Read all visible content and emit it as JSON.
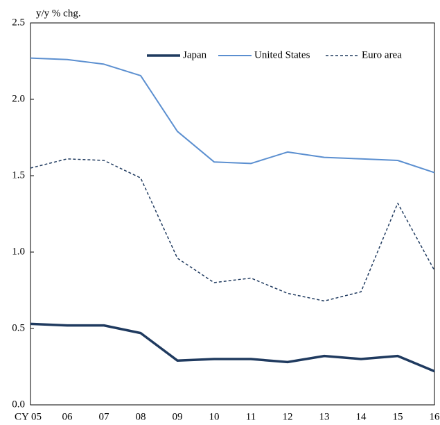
{
  "chart_data": {
    "type": "line",
    "y_label": "y/y % chg.",
    "categories": [
      "CY 05",
      "06",
      "07",
      "08",
      "09",
      "10",
      "11",
      "12",
      "13",
      "14",
      "15",
      "16"
    ],
    "series": [
      {
        "name": "Japan",
        "color": "#1f3a5f",
        "dash": "solid",
        "width": 3.5,
        "values": [
          0.53,
          0.52,
          0.52,
          0.47,
          0.29,
          0.3,
          0.3,
          0.28,
          0.32,
          0.3,
          0.32,
          0.22
        ]
      },
      {
        "name": "United States",
        "color": "#5b8fd0",
        "dash": "solid",
        "width": 2,
        "values": [
          2.27,
          2.26,
          2.23,
          2.155,
          1.79,
          1.59,
          1.58,
          1.655,
          1.62,
          1.61,
          1.6,
          1.52
        ]
      },
      {
        "name": "Euro area",
        "color": "#1f3a5f",
        "dash": "dashed",
        "width": 1.5,
        "values": [
          1.55,
          1.61,
          1.6,
          1.485,
          0.96,
          0.8,
          0.83,
          0.73,
          0.68,
          0.74,
          1.32,
          0.88
        ]
      }
    ],
    "ylim": [
      0,
      2.5
    ],
    "yticks": [
      {
        "value": 0,
        "label": "0.0"
      },
      0.5,
      {
        "value": 1,
        "label": "1.0"
      },
      1.5,
      {
        "value": 2,
        "label": "2.0"
      },
      2.5
    ],
    "legend": "top-right"
  }
}
